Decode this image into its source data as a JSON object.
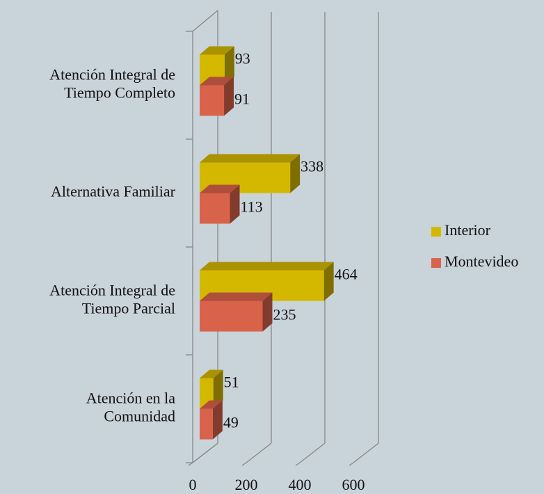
{
  "chart_data": {
    "type": "bar3d_horizontal",
    "categories": [
      [
        "Atención Integral de",
        "Tiempo Completo"
      ],
      [
        "Alternativa Familiar"
      ],
      [
        "Atención Integral de",
        "Tiempo Parcial"
      ],
      [
        "Atención en la",
        "Comunidad"
      ]
    ],
    "series": [
      {
        "name": "Interior",
        "color": "#d4b800",
        "values": [
          93,
          338,
          464,
          51
        ]
      },
      {
        "name": "Montevideo",
        "color": "#d9634a",
        "values": [
          91,
          113,
          235,
          49
        ]
      }
    ],
    "xlim": [
      0,
      600
    ],
    "xticks": [
      0,
      200,
      400,
      600
    ],
    "grid": true,
    "legend": "right"
  }
}
